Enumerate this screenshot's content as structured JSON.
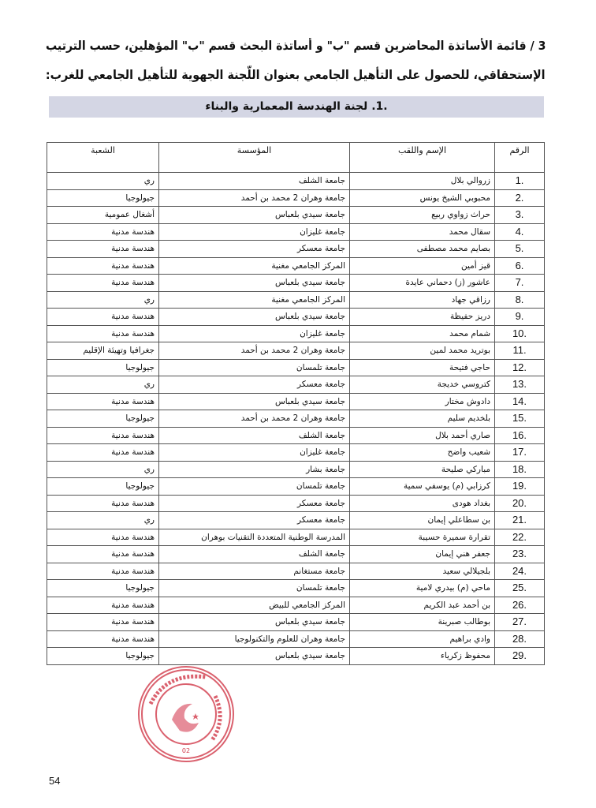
{
  "heading": {
    "line1": "3 / قائمة الأساتذة المحاضرين قسم \"ب\" و أساتذة البحث قسم \"ب\" المؤهلين، حسب الترتيب",
    "line2": "الإستحقاقي، للحصول على التأهيل الجامعي بعنوان اللّجنة الجهوية للتأهيل الجامعي للغرب:"
  },
  "section_title": ".1. لجنة الهندسة المعمارية والبناء",
  "table": {
    "headers": {
      "num": "الرقم",
      "name": "الإسم واللقب",
      "institution": "المؤسسة",
      "branch": "الشعبة"
    },
    "rows": [
      {
        "num": ".1",
        "name": "زروالي بلال",
        "institution": "جامعة الشلف",
        "branch": "ري"
      },
      {
        "num": ".2",
        "name": "محبوبي الشيخ يونس",
        "institution": "جامعة وهران 2 محمد بن أحمد",
        "branch": "جيولوجيا"
      },
      {
        "num": ".3",
        "name": "حراث زواوي ربيع",
        "institution": "جامعة سيدي بلعباس",
        "branch": "أشغال عمومية"
      },
      {
        "num": ".4",
        "name": "سقال محمد",
        "institution": "جامعة غليزان",
        "branch": "هندسة مدنية"
      },
      {
        "num": ".5",
        "name": "بصايم محمد مصطفى",
        "institution": "جامعة معسكر",
        "branch": "هندسة مدنية"
      },
      {
        "num": ".6",
        "name": "قيز أمين",
        "institution": "المركز الجامعي مغنية",
        "branch": "هندسة مدنية"
      },
      {
        "num": ".7",
        "name": "عاشور (ز) دحماني عايدة",
        "institution": "جامعة سيدي بلعباس",
        "branch": "هندسة مدنية"
      },
      {
        "num": ".8",
        "name": "رزاقي جهاد",
        "institution": "المركز الجامعي مغنية",
        "branch": "ري"
      },
      {
        "num": ".9",
        "name": "دريز حفيظة",
        "institution": "جامعة سيدي بلعباس",
        "branch": "هندسة مدنية"
      },
      {
        "num": ".10",
        "name": "شمام محمد",
        "institution": "جامعة غليزان",
        "branch": "هندسة مدنية"
      },
      {
        "num": ".11",
        "name": "بوتريد محمد لمين",
        "institution": "جامعة وهران 2 محمد بن أحمد",
        "branch": "جغرافيا وتهيئة الإقليم"
      },
      {
        "num": ".12",
        "name": "حاجي فتيحة",
        "institution": "جامعة تلمسان",
        "branch": "جيولوجيا"
      },
      {
        "num": ".13",
        "name": "كتروسي خديجة",
        "institution": "جامعة معسكر",
        "branch": "ري"
      },
      {
        "num": ".14",
        "name": "دادوش مختار",
        "institution": "جامعة سيدي بلعباس",
        "branch": "هندسة مدنية"
      },
      {
        "num": ".15",
        "name": "بلخديم سليم",
        "institution": "جامعة وهران 2 محمد بن أحمد",
        "branch": "جيولوجيا"
      },
      {
        "num": ".16",
        "name": "صاري أحمد بلال",
        "institution": "جامعة الشلف",
        "branch": "هندسة مدنية"
      },
      {
        "num": ".17",
        "name": "شعيب واضح",
        "institution": "جامعة غليزان",
        "branch": "هندسة مدنية"
      },
      {
        "num": ".18",
        "name": "مباركي صليحة",
        "institution": "جامعة بشار",
        "branch": "ري"
      },
      {
        "num": ".19",
        "name": "كرزابي (م) يوسفي سمية",
        "institution": "جامعة تلمسان",
        "branch": "جيولوجيا"
      },
      {
        "num": ".20",
        "name": "بغداد هودى",
        "institution": "جامعة معسكر",
        "branch": "هندسة مدنية"
      },
      {
        "num": ".21",
        "name": "بن سطاعلي إيمان",
        "institution": "جامعة معسكر",
        "branch": "ري"
      },
      {
        "num": ".22",
        "name": "تقرارة سميرة حسيبة",
        "institution": "المدرسة الوطنية المتعددة التقنيات بوهران",
        "branch": "هندسة مدنية"
      },
      {
        "num": ".23",
        "name": "جعفر هني إيمان",
        "institution": "جامعة الشلف",
        "branch": "هندسة مدنية"
      },
      {
        "num": ".24",
        "name": "بلجيلالي سعيد",
        "institution": "جامعة مستغانم",
        "branch": "هندسة مدنية"
      },
      {
        "num": ".25",
        "name": "ماحي (م) بيدري لامية",
        "institution": "جامعة تلمسان",
        "branch": "جيولوجيا"
      },
      {
        "num": ".26",
        "name": "بن أحمد عبد الكريم",
        "institution": "المركز الجامعي للبيض",
        "branch": "هندسة مدنية"
      },
      {
        "num": ".27",
        "name": "بوطالب صبرينة",
        "institution": "جامعة سيدي بلعباس",
        "branch": "هندسة مدنية"
      },
      {
        "num": ".28",
        "name": "وادي براهيم",
        "institution": "جامعة وهران للعلوم والتكنولوجيا",
        "branch": "هندسة مدنية"
      },
      {
        "num": ".29",
        "name": "محفوظ زكرياء",
        "institution": "جامعة سيدي بلعباس",
        "branch": "جيولوجيا"
      }
    ]
  },
  "stamp": {
    "text": "وزارة التعليم العالي والبحث العلمي",
    "number": "02",
    "color": "#d23a4a"
  },
  "band_color": "#d4d6e4",
  "page_number": "54"
}
